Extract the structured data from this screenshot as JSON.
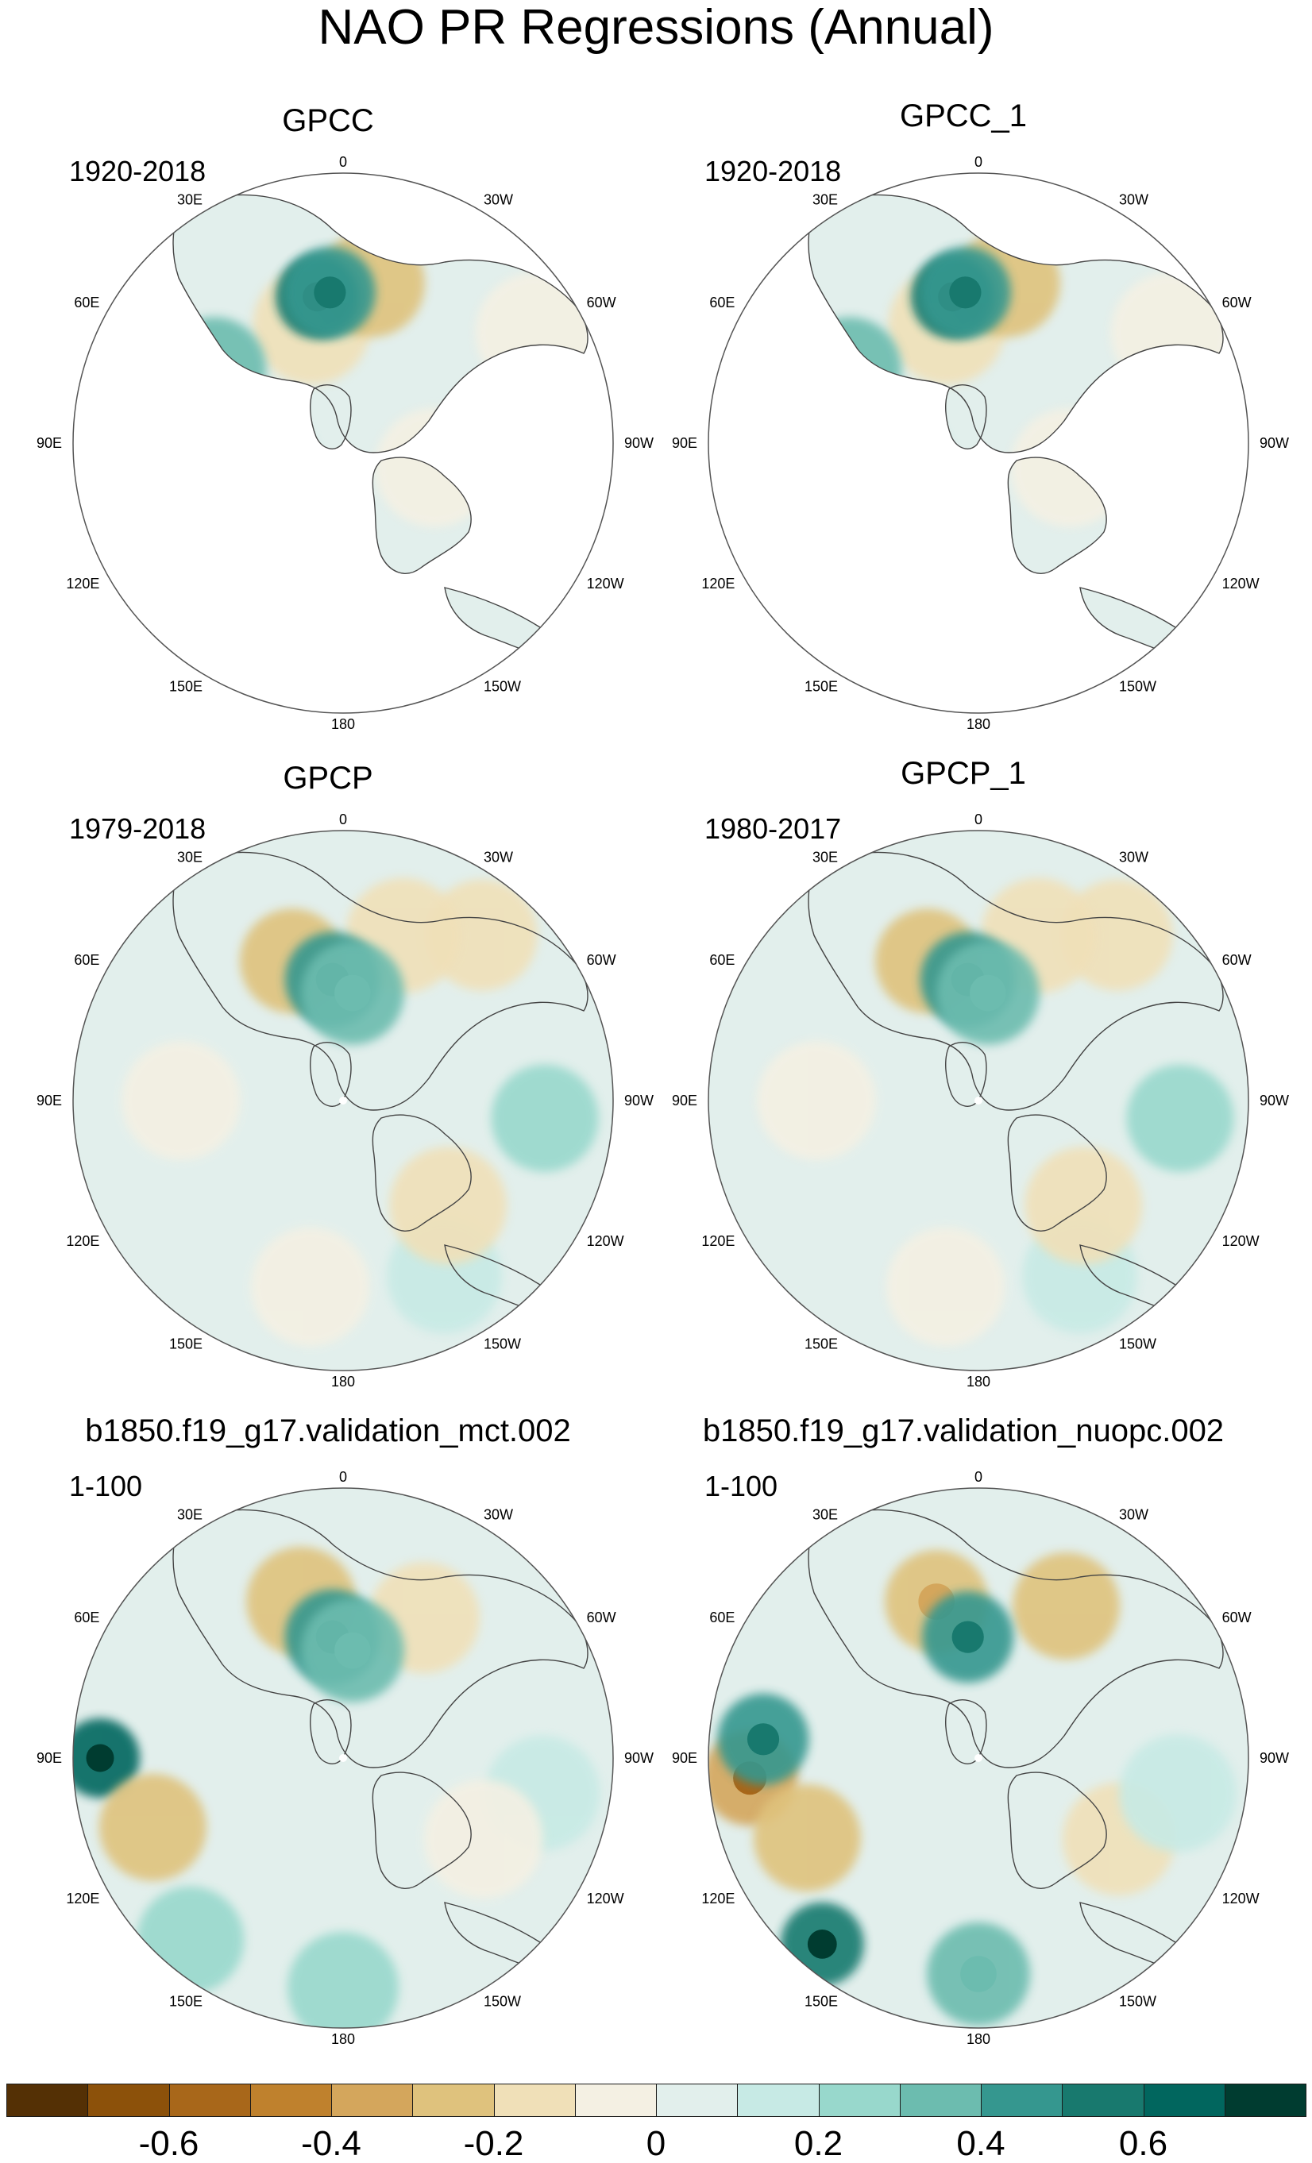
{
  "title": "NAO PR Regressions (Annual)",
  "chart_data": [
    {
      "type": "heatmap",
      "projection": "polar-stereographic (northern hemisphere)",
      "title": "GPCC",
      "years": "1920-2018",
      "blobs": [
        {
          "lon": 105,
          "r": 0.32,
          "value": 0.1
        },
        {
          "lon": -105,
          "r": 0.35,
          "value": -0.1
        },
        {
          "lon": 15,
          "r": 0.45,
          "value": -0.12
        },
        {
          "lon": -10,
          "r": 0.6,
          "value": -0.25
        },
        {
          "lon": 10,
          "r": 0.55,
          "value": 0.55
        },
        {
          "lon": 5,
          "r": 0.56,
          "value": 0.45
        },
        {
          "lon": 60,
          "r": 0.55,
          "value": 0.3
        },
        {
          "lon": -95,
          "r": 0.75,
          "value": 0.2
        },
        {
          "lon": 140,
          "r": 0.55,
          "value": 0.08
        },
        {
          "lon": -60,
          "r": 0.82,
          "value": -0.1
        }
      ],
      "mask": "land-only"
    },
    {
      "type": "heatmap",
      "projection": "polar-stereographic (northern hemisphere)",
      "title": "GPCC_1",
      "years": "1920-2018",
      "blobs": [
        {
          "lon": 105,
          "r": 0.32,
          "value": 0.1
        },
        {
          "lon": -105,
          "r": 0.35,
          "value": -0.1
        },
        {
          "lon": 15,
          "r": 0.45,
          "value": -0.12
        },
        {
          "lon": -10,
          "r": 0.6,
          "value": -0.25
        },
        {
          "lon": 10,
          "r": 0.55,
          "value": 0.55
        },
        {
          "lon": 5,
          "r": 0.56,
          "value": 0.45
        },
        {
          "lon": 60,
          "r": 0.55,
          "value": 0.3
        },
        {
          "lon": -95,
          "r": 0.75,
          "value": 0.2
        },
        {
          "lon": 140,
          "r": 0.55,
          "value": 0.08
        },
        {
          "lon": -60,
          "r": 0.82,
          "value": -0.1
        }
      ],
      "mask": "land-only"
    },
    {
      "type": "heatmap",
      "projection": "polar-stereographic (northern hemisphere)",
      "title": "GPCP",
      "years": "1979-2018",
      "blobs": [
        {
          "lon": -150,
          "r": 0.75,
          "value": 0.15
        },
        {
          "lon": -135,
          "r": 0.55,
          "value": -0.12
        },
        {
          "lon": -40,
          "r": 0.8,
          "value": -0.2
        },
        {
          "lon": -20,
          "r": 0.65,
          "value": -0.15
        },
        {
          "lon": 20,
          "r": 0.55,
          "value": -0.28
        },
        {
          "lon": 5,
          "r": 0.45,
          "value": 0.4
        },
        {
          "lon": -5,
          "r": 0.4,
          "value": 0.3
        },
        {
          "lon": -95,
          "r": 0.75,
          "value": 0.25
        },
        {
          "lon": 90,
          "r": 0.6,
          "value": -0.1
        },
        {
          "lon": 170,
          "r": 0.7,
          "value": -0.1
        }
      ],
      "mask": "none"
    },
    {
      "type": "heatmap",
      "projection": "polar-stereographic (northern hemisphere)",
      "title": "GPCP_1",
      "years": "1980-2017",
      "blobs": [
        {
          "lon": -150,
          "r": 0.75,
          "value": 0.15
        },
        {
          "lon": -135,
          "r": 0.55,
          "value": -0.12
        },
        {
          "lon": -40,
          "r": 0.8,
          "value": -0.2
        },
        {
          "lon": -20,
          "r": 0.65,
          "value": -0.15
        },
        {
          "lon": 20,
          "r": 0.55,
          "value": -0.28
        },
        {
          "lon": 5,
          "r": 0.45,
          "value": 0.4
        },
        {
          "lon": -5,
          "r": 0.4,
          "value": 0.3
        },
        {
          "lon": -95,
          "r": 0.75,
          "value": 0.25
        },
        {
          "lon": 90,
          "r": 0.6,
          "value": -0.1
        },
        {
          "lon": 170,
          "r": 0.7,
          "value": -0.1
        }
      ],
      "mask": "none"
    },
    {
      "type": "heatmap",
      "projection": "polar-stereographic (northern hemisphere)",
      "title": "b1850.f19_g17.validation_mct.002",
      "years": "1-100",
      "blobs": [
        {
          "lon": 180,
          "r": 0.85,
          "value": 0.2
        },
        {
          "lon": 140,
          "r": 0.88,
          "value": 0.25
        },
        {
          "lon": 90,
          "r": 0.9,
          "value": 0.6
        },
        {
          "lon": 110,
          "r": 0.75,
          "value": -0.25
        },
        {
          "lon": -30,
          "r": 0.6,
          "value": -0.2
        },
        {
          "lon": 15,
          "r": 0.6,
          "value": -0.22
        },
        {
          "lon": 5,
          "r": 0.45,
          "value": 0.4
        },
        {
          "lon": -5,
          "r": 0.4,
          "value": 0.3
        },
        {
          "lon": -100,
          "r": 0.75,
          "value": 0.15
        },
        {
          "lon": -120,
          "r": 0.6,
          "value": -0.1
        }
      ],
      "mask": "none"
    },
    {
      "type": "heatmap",
      "projection": "polar-stereographic (northern hemisphere)",
      "title": "b1850.f19_g17.validation_nuopc.002",
      "years": "1-100",
      "blobs": [
        {
          "lon": 180,
          "r": 0.8,
          "value": 0.3
        },
        {
          "lon": 140,
          "r": 0.9,
          "value": 0.55
        },
        {
          "lon": 95,
          "r": 0.85,
          "value": -0.4
        },
        {
          "lon": 85,
          "r": 0.8,
          "value": 0.45
        },
        {
          "lon": 115,
          "r": 0.7,
          "value": -0.25
        },
        {
          "lon": -30,
          "r": 0.65,
          "value": -0.25
        },
        {
          "lon": 15,
          "r": 0.6,
          "value": -0.3
        },
        {
          "lon": 5,
          "r": 0.45,
          "value": 0.45
        },
        {
          "lon": -120,
          "r": 0.6,
          "value": -0.18
        },
        {
          "lon": -100,
          "r": 0.75,
          "value": 0.12
        }
      ],
      "mask": "none"
    }
  ],
  "lon_labels": [
    "180",
    "150E",
    "120E",
    "90E",
    "60E",
    "30E",
    "0",
    "30W",
    "60W",
    "90W",
    "120W",
    "150W"
  ],
  "colorbar": {
    "colors": [
      "#543005",
      "#8c510a",
      "#a8671a",
      "#bf812d",
      "#d4a65c",
      "#dfc27d",
      "#f0e0b8",
      "#f4f0e3",
      "#e2efec",
      "#c7eae5",
      "#98d8cc",
      "#6cbcaf",
      "#35978f",
      "#18796e",
      "#01665e",
      "#003c30"
    ],
    "labels": [
      "-0.6",
      "-0.4",
      "-0.2",
      "0",
      "0.2",
      "0.4",
      "0.6"
    ],
    "boundaries": [
      -0.7,
      -0.6,
      -0.5,
      -0.4,
      -0.3,
      -0.2,
      -0.1,
      0,
      0.1,
      0.2,
      0.3,
      0.4,
      0.5,
      0.6,
      0.7
    ]
  }
}
